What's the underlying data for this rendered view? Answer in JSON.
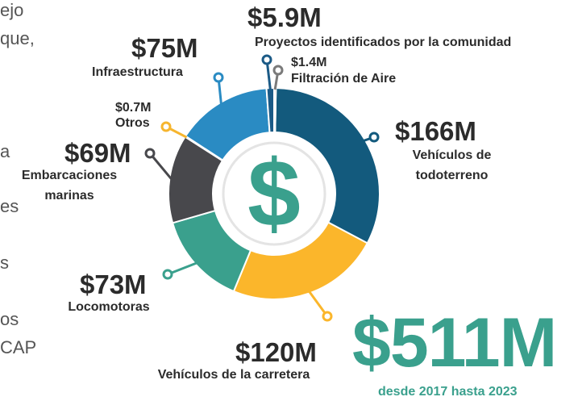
{
  "chart_data": {
    "type": "donut",
    "categories": [
      "Vehículos de todoterreno",
      "Vehículos de la carretera",
      "Locomotoras",
      "Embarcaciones marinas",
      "Otros",
      "Infraestructura",
      "Proyectos identificados por la comunidad",
      "Filtración de Aire"
    ],
    "values": [
      166,
      120,
      73,
      69,
      0.7,
      75,
      5.9,
      1.4
    ],
    "value_labels": [
      "$166M",
      "$120M",
      "$73M",
      "$69M",
      "$0.7M",
      "$75M",
      "$5.9M",
      "$1.4M"
    ],
    "colors": [
      "#135a7d",
      "#fbb62b",
      "#3aa08d",
      "#48484c",
      "#f6b52e",
      "#2a8bc3",
      "#1b5a86",
      "#7a7a7a"
    ],
    "center_symbol": "$",
    "total_label": "$511M",
    "total_subtitle": "desde 2017 hasta 2023",
    "background_text": [
      "ejo",
      "que,",
      "a",
      "es",
      "s",
      "os",
      "CAP"
    ]
  }
}
